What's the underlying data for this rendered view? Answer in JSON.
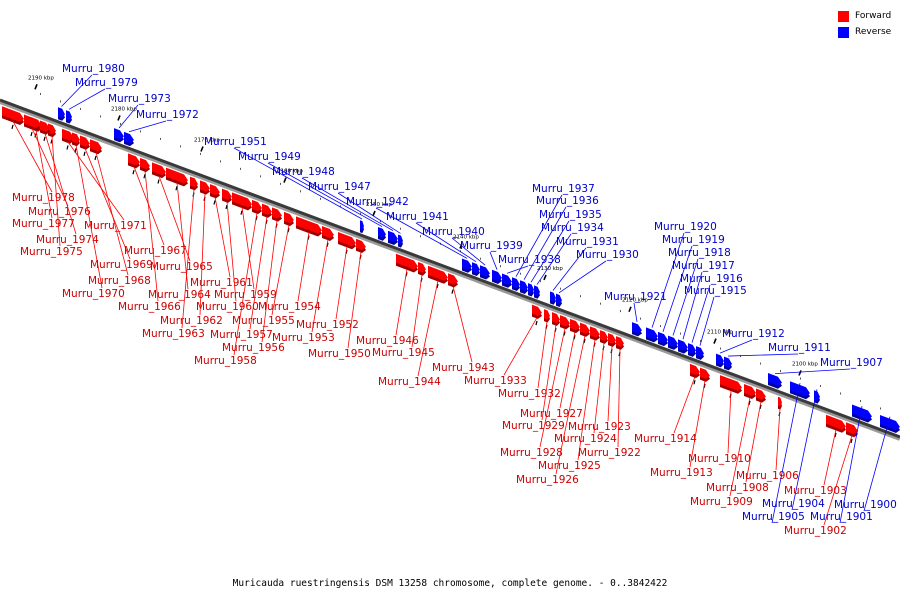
{
  "caption": "Muricauda ruestringensis DSM 13258 chromosome, complete genome. - 0..3842422",
  "legend": [
    {
      "label": "Forward",
      "color": "#ff0000"
    },
    {
      "label": "Reverse",
      "color": "#0000ff"
    }
  ],
  "colors": {
    "forward": "#ff0000",
    "reverse": "#0000ff",
    "forward_label": "#cc0000",
    "reverse_label": "#0000cc"
  },
  "ticks": [
    "2190 kbp",
    "2180 kbp",
    "2170 kbp",
    "2160 kbp",
    "2150 kbp",
    "2140 kbp",
    "2130 kbp",
    "2120 kbp",
    "2110 kbp",
    "2100 kbp"
  ],
  "genes": [
    {
      "name": "Murru_1980",
      "strand": "reverse"
    },
    {
      "name": "Murru_1979",
      "strand": "reverse"
    },
    {
      "name": "Murru_1978",
      "strand": "forward"
    },
    {
      "name": "Murru_1977",
      "strand": "forward"
    },
    {
      "name": "Murru_1976",
      "strand": "forward"
    },
    {
      "name": "Murru_1975",
      "strand": "forward"
    },
    {
      "name": "Murru_1974",
      "strand": "forward"
    },
    {
      "name": "Murru_1973",
      "strand": "reverse"
    },
    {
      "name": "Murru_1972",
      "strand": "reverse"
    },
    {
      "name": "Murru_1971",
      "strand": "forward"
    },
    {
      "name": "Murru_1970",
      "strand": "forward"
    },
    {
      "name": "Murru_1969",
      "strand": "forward"
    },
    {
      "name": "Murru_1968",
      "strand": "forward"
    },
    {
      "name": "Murru_1967",
      "strand": "forward"
    },
    {
      "name": "Murru_1966",
      "strand": "forward"
    },
    {
      "name": "Murru_1965",
      "strand": "forward"
    },
    {
      "name": "Murru_1964",
      "strand": "forward"
    },
    {
      "name": "Murru_1963",
      "strand": "forward"
    },
    {
      "name": "Murru_1962",
      "strand": "forward"
    },
    {
      "name": "Murru_1961",
      "strand": "forward"
    },
    {
      "name": "Murru_1960",
      "strand": "forward"
    },
    {
      "name": "Murru_1959",
      "strand": "forward"
    },
    {
      "name": "Murru_1958",
      "strand": "forward"
    },
    {
      "name": "Murru_1957",
      "strand": "forward"
    },
    {
      "name": "Murru_1956",
      "strand": "forward"
    },
    {
      "name": "Murru_1955",
      "strand": "forward"
    },
    {
      "name": "Murru_1954",
      "strand": "forward"
    },
    {
      "name": "Murru_1953",
      "strand": "forward"
    },
    {
      "name": "Murru_1952",
      "strand": "forward"
    },
    {
      "name": "Murru_1951",
      "strand": "reverse"
    },
    {
      "name": "Murru_1950",
      "strand": "forward"
    },
    {
      "name": "Murru_1949",
      "strand": "reverse"
    },
    {
      "name": "Murru_1948",
      "strand": "reverse"
    },
    {
      "name": "Murru_1947",
      "strand": "reverse"
    },
    {
      "name": "Murru_1946",
      "strand": "forward"
    },
    {
      "name": "Murru_1945",
      "strand": "forward"
    },
    {
      "name": "Murru_1944",
      "strand": "forward"
    },
    {
      "name": "Murru_1943",
      "strand": "forward"
    },
    {
      "name": "Murru_1942",
      "strand": "reverse"
    },
    {
      "name": "Murru_1941",
      "strand": "reverse"
    },
    {
      "name": "Murru_1940",
      "strand": "reverse"
    },
    {
      "name": "Murru_1939",
      "strand": "reverse"
    },
    {
      "name": "Murru_1938",
      "strand": "reverse"
    },
    {
      "name": "Murru_1937",
      "strand": "reverse"
    },
    {
      "name": "Murru_1936",
      "strand": "reverse"
    },
    {
      "name": "Murru_1935",
      "strand": "reverse"
    },
    {
      "name": "Murru_1934",
      "strand": "reverse"
    },
    {
      "name": "Murru_1933",
      "strand": "forward"
    },
    {
      "name": "Murru_1932",
      "strand": "forward"
    },
    {
      "name": "Murru_1931",
      "strand": "reverse"
    },
    {
      "name": "Murru_1930",
      "strand": "reverse"
    },
    {
      "name": "Murru_1929",
      "strand": "forward"
    },
    {
      "name": "Murru_1928",
      "strand": "forward"
    },
    {
      "name": "Murru_1927",
      "strand": "forward"
    },
    {
      "name": "Murru_1926",
      "strand": "forward"
    },
    {
      "name": "Murru_1925",
      "strand": "forward"
    },
    {
      "name": "Murru_1924",
      "strand": "forward"
    },
    {
      "name": "Murru_1923",
      "strand": "forward"
    },
    {
      "name": "Murru_1922",
      "strand": "forward"
    },
    {
      "name": "Murru_1921",
      "strand": "reverse"
    },
    {
      "name": "Murru_1920",
      "strand": "reverse"
    },
    {
      "name": "Murru_1919",
      "strand": "reverse"
    },
    {
      "name": "Murru_1918",
      "strand": "reverse"
    },
    {
      "name": "Murru_1917",
      "strand": "reverse"
    },
    {
      "name": "Murru_1916",
      "strand": "reverse"
    },
    {
      "name": "Murru_1915",
      "strand": "reverse"
    },
    {
      "name": "Murru_1914",
      "strand": "forward"
    },
    {
      "name": "Murru_1913",
      "strand": "forward"
    },
    {
      "name": "Murru_1912",
      "strand": "reverse"
    },
    {
      "name": "Murru_1911",
      "strand": "reverse"
    },
    {
      "name": "Murru_1910",
      "strand": "forward"
    },
    {
      "name": "Murru_1909",
      "strand": "forward"
    },
    {
      "name": "Murru_1908",
      "strand": "forward"
    },
    {
      "name": "Murru_1907",
      "strand": "reverse"
    },
    {
      "name": "Murru_1906",
      "strand": "forward"
    },
    {
      "name": "Murru_1905",
      "strand": "reverse"
    },
    {
      "name": "Murru_1904",
      "strand": "reverse"
    },
    {
      "name": "Murru_1903",
      "strand": "forward"
    },
    {
      "name": "Murru_1902",
      "strand": "forward"
    },
    {
      "name": "Murru_1901",
      "strand": "reverse"
    },
    {
      "name": "Murru_1900",
      "strand": "reverse"
    }
  ]
}
